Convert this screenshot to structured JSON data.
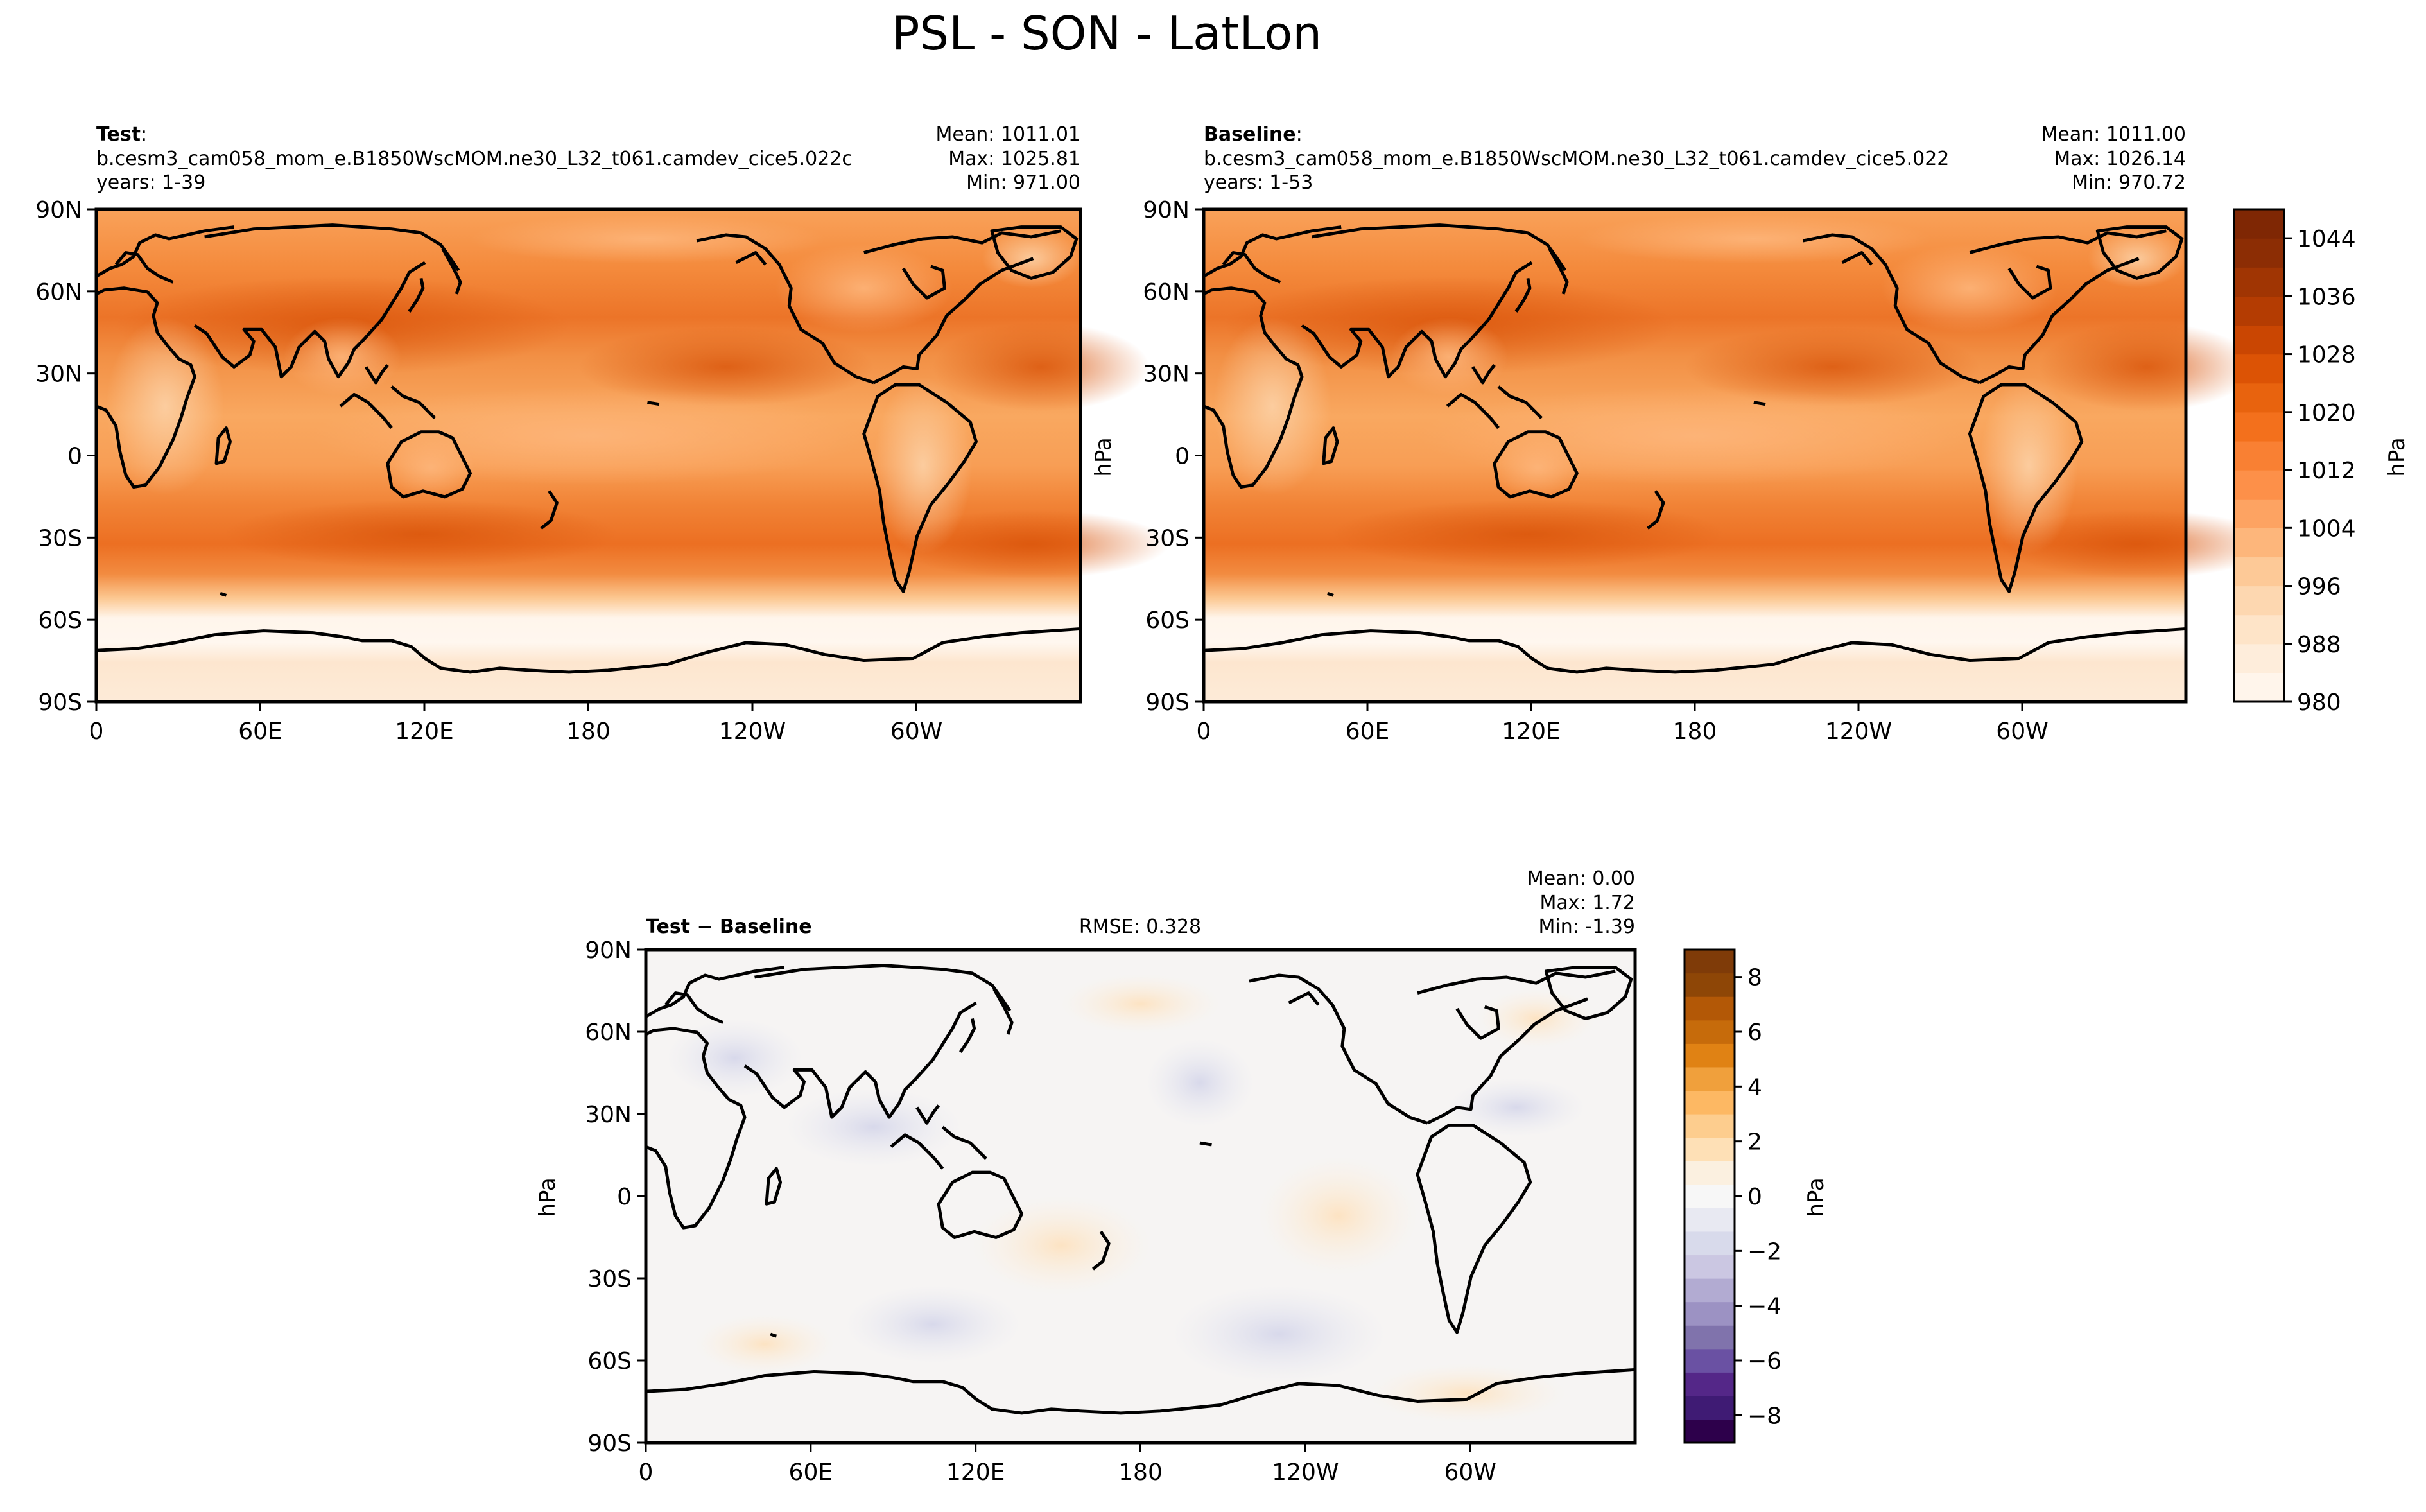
{
  "figure": {
    "title": "PSL - SON - LatLon"
  },
  "lat_ticks": [
    "90N",
    "60N",
    "30N",
    "0",
    "30S",
    "60S",
    "90S"
  ],
  "lon_ticks": [
    "0",
    "60E",
    "120E",
    "180",
    "120W",
    "60W"
  ],
  "panels": {
    "test": {
      "label_bold": "Test",
      "label_suffix": ":",
      "case": "b.cesm3_cam058_mom_e.B1850WscMOM.ne30_L32_t061.camdev_cice5.022c",
      "years": "years: 1-39",
      "mean": "Mean: 1011.01",
      "max": "Max: 1025.81",
      "min": "Min: 971.00"
    },
    "baseline": {
      "label_bold": "Baseline",
      "label_suffix": ":",
      "case": "b.cesm3_cam058_mom_e.B1850WscMOM.ne30_L32_t061.camdev_cice5.022",
      "years": "years: 1-53",
      "mean": "Mean: 1011.00",
      "max": "Max: 1026.14",
      "min": "Min: 970.72"
    },
    "diff": {
      "label": "Test − Baseline",
      "rmse": "RMSE: 0.328",
      "mean": "Mean:  0.00",
      "max": "Max:  1.72",
      "min": "Min: -1.39"
    }
  },
  "colorbars": {
    "main": {
      "unit": "hPa",
      "ticks": [
        "1044",
        "1036",
        "1028",
        "1020",
        "1012",
        "1004",
        "996",
        "988",
        "980"
      ],
      "colors": [
        "#fff5eb",
        "#feeddb",
        "#fee4c8",
        "#fdd7b0",
        "#fdc997",
        "#fdb67b",
        "#fda362",
        "#fd9049",
        "#f98033",
        "#f3701c",
        "#e8630e",
        "#dc5305",
        "#ca4602",
        "#b43c02",
        "#a03503",
        "#8c2d04",
        "#7f2704"
      ]
    },
    "diff": {
      "unit": "hPa",
      "ticks": [
        "8",
        "6",
        "4",
        "2",
        "0",
        "−2",
        "−4",
        "−6",
        "−8"
      ],
      "colors": [
        "#2d004b",
        "#3f1b74",
        "#542788",
        "#6a51a3",
        "#8073ac",
        "#9c92c3",
        "#b2abd2",
        "#cbc7e2",
        "#d8daeb",
        "#e8e9f2",
        "#f7f7f7",
        "#fbf0e0",
        "#fee0b6",
        "#fdcd8e",
        "#fdb863",
        "#f0a03c",
        "#e08214",
        "#c66b0b",
        "#b35806",
        "#8e4606",
        "#7f3b08"
      ]
    }
  },
  "chart_data": {
    "type": "heatmap",
    "projection": "PlateCarree, central longitude 180",
    "variable": "PSL",
    "season": "SON",
    "units": "hPa",
    "panels": [
      {
        "name": "Test",
        "mean": 1011.01,
        "max": 1025.81,
        "min": 971.0,
        "vmin": 980,
        "vmax": 1048
      },
      {
        "name": "Baseline",
        "mean": 1011.0,
        "max": 1026.14,
        "min": 970.72,
        "vmin": 980,
        "vmax": 1048
      },
      {
        "name": "Test − Baseline",
        "mean": 0.0,
        "max": 1.72,
        "min": -1.39,
        "rmse": 0.328,
        "vmin": -9,
        "vmax": 9
      }
    ],
    "lat_range": [
      -90,
      90
    ],
    "lon_range": [
      0,
      360
    ]
  }
}
